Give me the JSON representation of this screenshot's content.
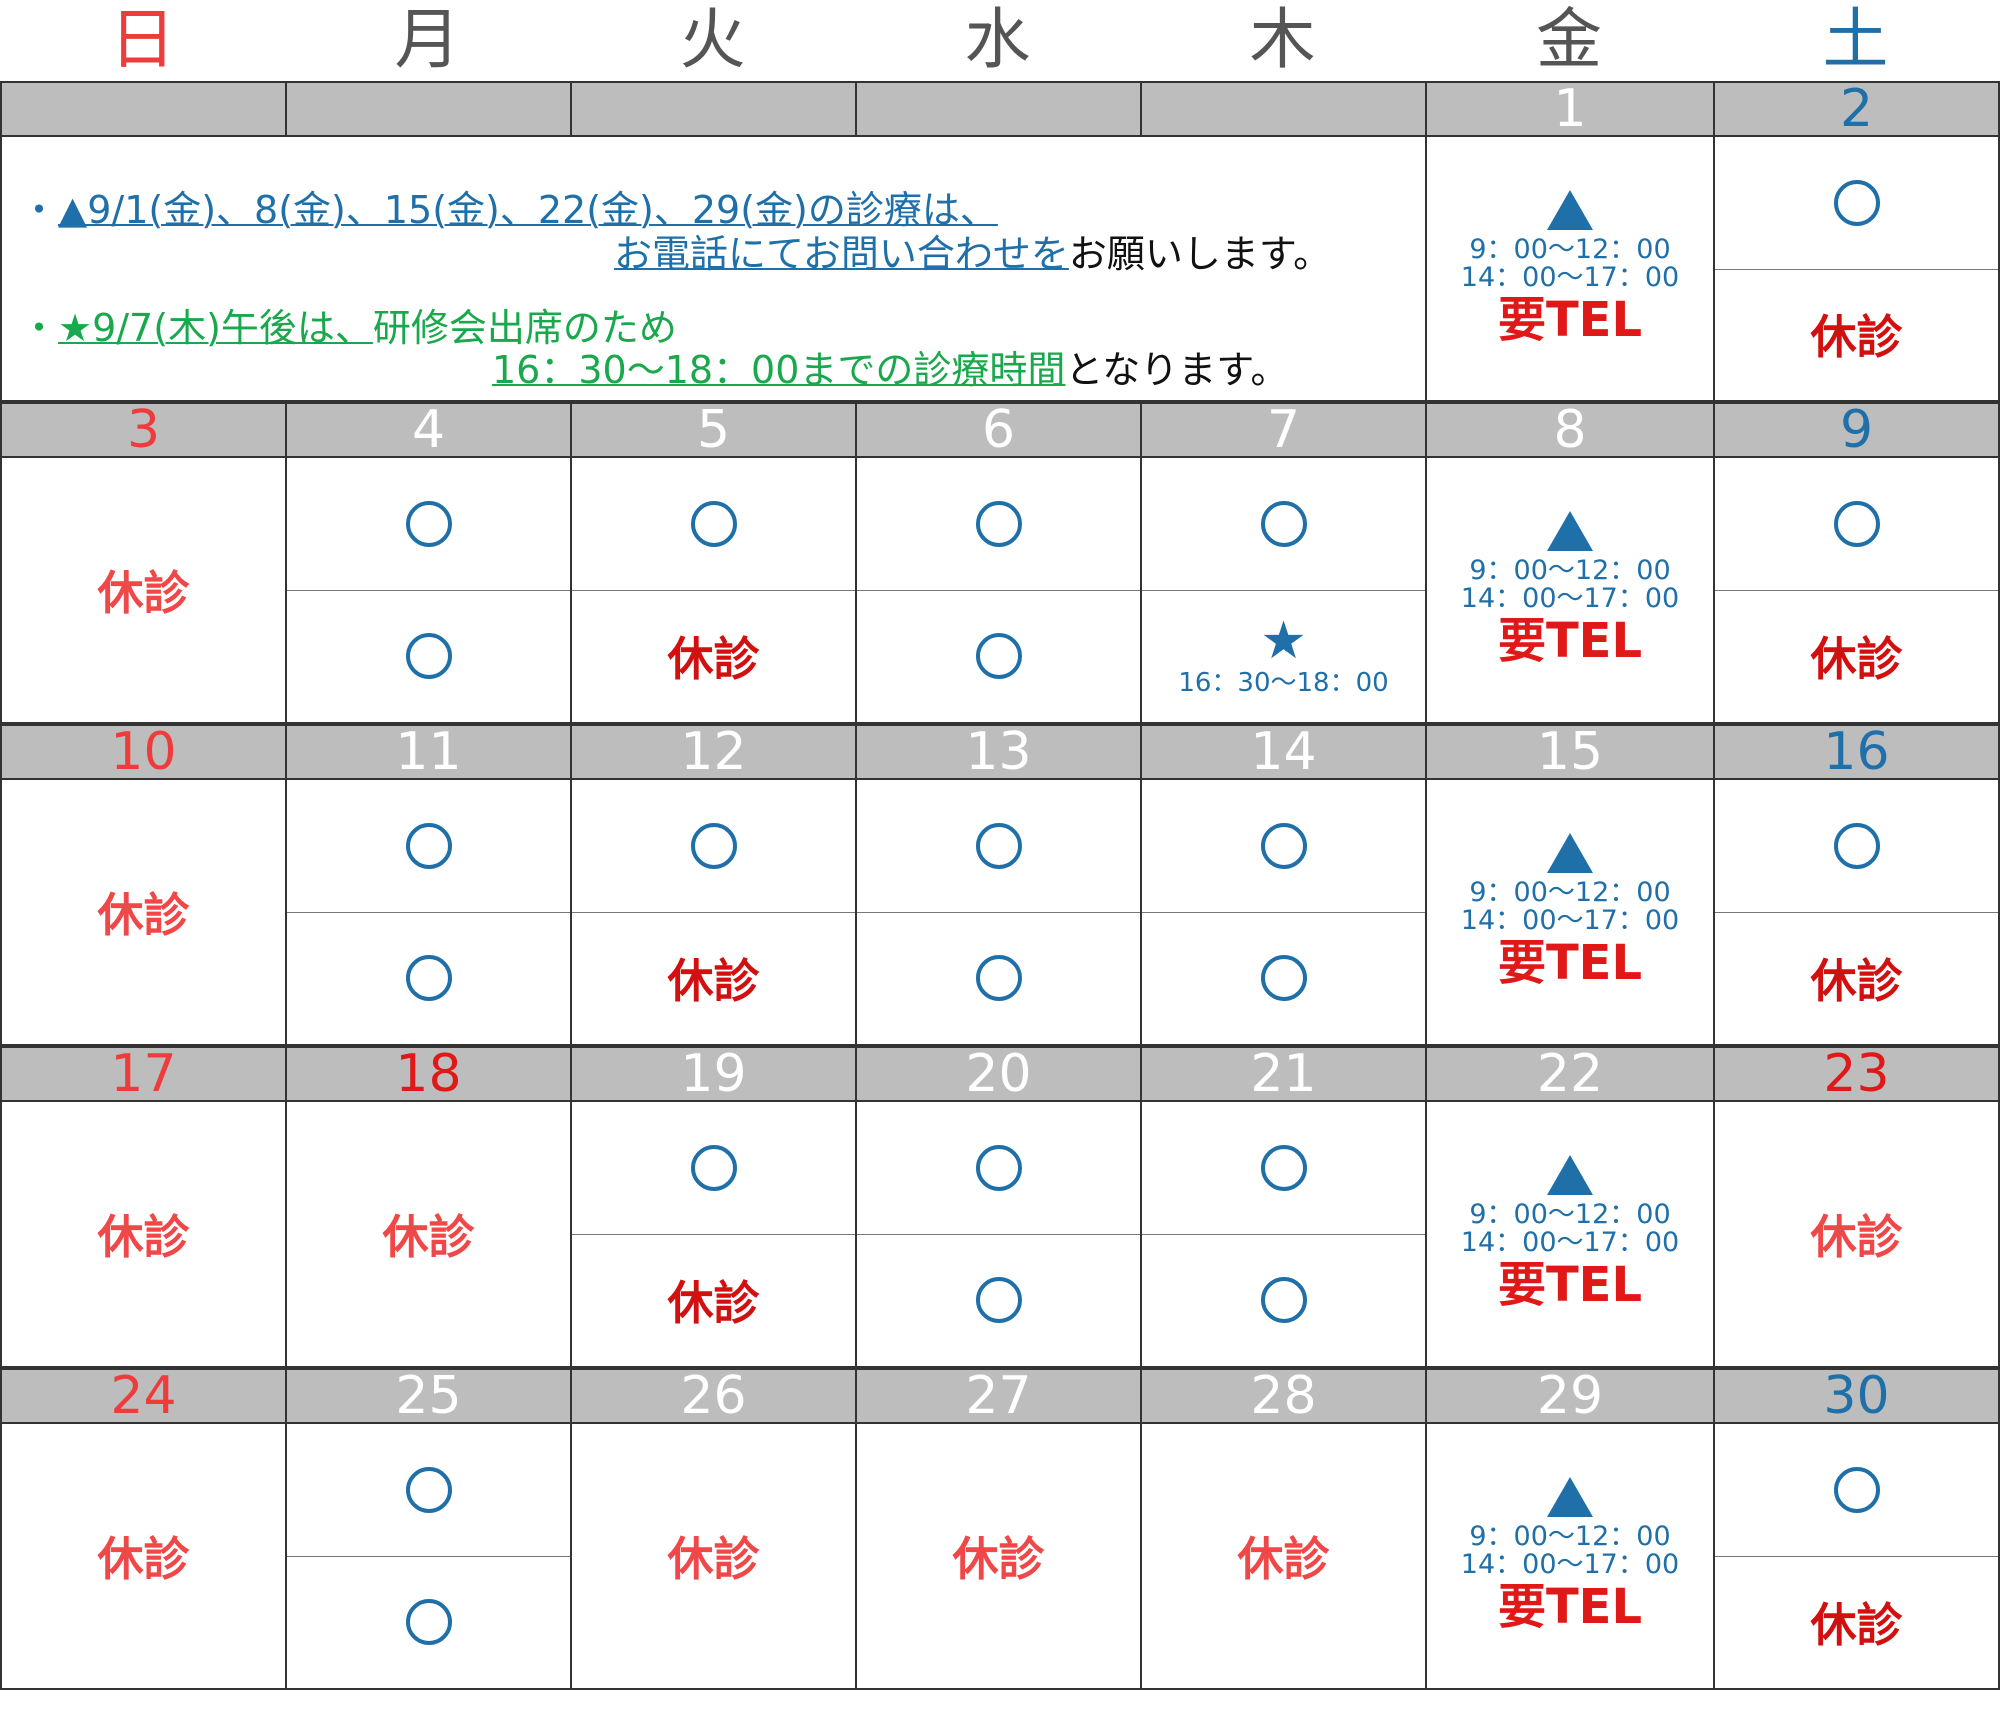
{
  "weekdays": [
    {
      "label": "日",
      "color": "#ee3b3b"
    },
    {
      "label": "月",
      "color": "#555555"
    },
    {
      "label": "火",
      "color": "#555555"
    },
    {
      "label": "水",
      "color": "#555555"
    },
    {
      "label": "木",
      "color": "#555555"
    },
    {
      "label": "金",
      "color": "#555555"
    },
    {
      "label": "土",
      "color": "#1f6fa8"
    }
  ],
  "notice": {
    "line1_bullet": "・",
    "line1_link": "▲9/1(金)、8(金)、15(金)、22(金)、29(金)の診療は、",
    "line2_link": "お電話にてお問い合わせを",
    "line2_tail": "お願いします。",
    "line3_bullet": "・",
    "line3_link": "★9/7(木)午後は、",
    "line3_tail": "研修会出席のため",
    "line4_link": "16：30〜18：00までの診療時間",
    "line4_tail": "となります。"
  },
  "friday": {
    "time_morning": "9：00〜12：00",
    "time_afternoon": "14：00〜17：00",
    "tel": "要TEL"
  },
  "closed_label": "休診",
  "star_time": "16：30〜18：00",
  "weeks": [
    {
      "days": [
        {
          "num": "",
          "color": "#ffffff",
          "type": "blank"
        },
        {
          "num": "",
          "color": "#ffffff",
          "type": "blank"
        },
        {
          "num": "",
          "color": "#ffffff",
          "type": "blank"
        },
        {
          "num": "",
          "color": "#ffffff",
          "type": "blank"
        },
        {
          "num": "",
          "color": "#ffffff",
          "type": "blank"
        },
        {
          "num": "1",
          "color": "#ffffff",
          "type": "friday"
        },
        {
          "num": "2",
          "color": "#1f6fa8",
          "type": "split",
          "top": "open",
          "bottom": "closed-red"
        }
      ]
    },
    {
      "days": [
        {
          "num": "3",
          "color": "#ee3b3b",
          "type": "full-closed"
        },
        {
          "num": "4",
          "color": "#ffffff",
          "type": "split",
          "top": "open",
          "bottom": "open"
        },
        {
          "num": "5",
          "color": "#ffffff",
          "type": "split",
          "top": "open",
          "bottom": "closed-red"
        },
        {
          "num": "6",
          "color": "#ffffff",
          "type": "split",
          "top": "open",
          "bottom": "open"
        },
        {
          "num": "7",
          "color": "#ffffff",
          "type": "split",
          "top": "open",
          "bottom": "star"
        },
        {
          "num": "8",
          "color": "#ffffff",
          "type": "friday"
        },
        {
          "num": "9",
          "color": "#1f6fa8",
          "type": "split",
          "top": "open",
          "bottom": "closed-red"
        }
      ]
    },
    {
      "days": [
        {
          "num": "10",
          "color": "#ee3b3b",
          "type": "full-closed"
        },
        {
          "num": "11",
          "color": "#ffffff",
          "type": "split",
          "top": "open",
          "bottom": "open"
        },
        {
          "num": "12",
          "color": "#ffffff",
          "type": "split",
          "top": "open",
          "bottom": "closed-red"
        },
        {
          "num": "13",
          "color": "#ffffff",
          "type": "split",
          "top": "open",
          "bottom": "open"
        },
        {
          "num": "14",
          "color": "#ffffff",
          "type": "split",
          "top": "open",
          "bottom": "open"
        },
        {
          "num": "15",
          "color": "#ffffff",
          "type": "friday"
        },
        {
          "num": "16",
          "color": "#1f6fa8",
          "type": "split",
          "top": "open",
          "bottom": "closed-red"
        }
      ]
    },
    {
      "days": [
        {
          "num": "17",
          "color": "#ee3b3b",
          "type": "full-closed"
        },
        {
          "num": "18",
          "color": "#e01818",
          "type": "full-closed"
        },
        {
          "num": "19",
          "color": "#ffffff",
          "type": "split",
          "top": "open",
          "bottom": "closed-red"
        },
        {
          "num": "20",
          "color": "#ffffff",
          "type": "split",
          "top": "open",
          "bottom": "open"
        },
        {
          "num": "21",
          "color": "#ffffff",
          "type": "split",
          "top": "open",
          "bottom": "open"
        },
        {
          "num": "22",
          "color": "#ffffff",
          "type": "friday"
        },
        {
          "num": "23",
          "color": "#e01818",
          "type": "full-closed"
        }
      ]
    },
    {
      "days": [
        {
          "num": "24",
          "color": "#ee3b3b",
          "type": "full-closed"
        },
        {
          "num": "25",
          "color": "#ffffff",
          "type": "split",
          "top": "open",
          "bottom": "open"
        },
        {
          "num": "26",
          "color": "#ffffff",
          "type": "full-closed"
        },
        {
          "num": "27",
          "color": "#ffffff",
          "type": "full-closed"
        },
        {
          "num": "28",
          "color": "#ffffff",
          "type": "full-closed"
        },
        {
          "num": "29",
          "color": "#ffffff",
          "type": "friday"
        },
        {
          "num": "30",
          "color": "#1f6fa8",
          "type": "split",
          "top": "open",
          "bottom": "closed-red"
        }
      ]
    }
  ]
}
